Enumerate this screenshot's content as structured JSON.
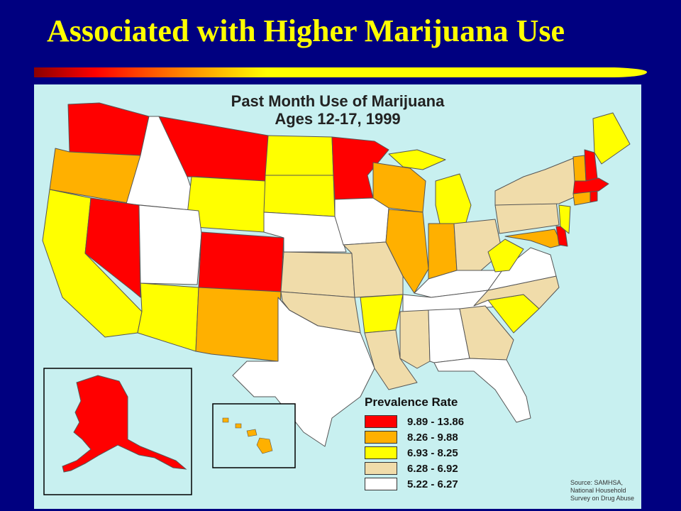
{
  "slide": {
    "title": "Associated with Higher Marijuana Use"
  },
  "map": {
    "title_line1": "Past Month Use of Marijuana",
    "title_line2": "Ages 12-17, 1999",
    "legend": {
      "title": "Prevalence Rate",
      "items": [
        {
          "label": "9.89 - 13.86",
          "color": "#ff0000"
        },
        {
          "label": "8.26 - 9.88",
          "color": "#ffb000"
        },
        {
          "label": "6.93 - 8.25",
          "color": "#ffff00"
        },
        {
          "label": "6.28 - 6.92",
          "color": "#f0dcaa"
        },
        {
          "label": "5.22 - 6.27",
          "color": "#ffffff"
        }
      ]
    },
    "source_line1": "Source: SAMHSA,",
    "source_line2": "National Household Survey on Drug Abuse",
    "states": {
      "WA": "9.89 - 13.86",
      "OR": "8.26 - 9.88",
      "CA": "6.93 - 8.25",
      "ID": "5.22 - 6.27",
      "NV": "9.89 - 13.86",
      "UT": "5.22 - 6.27",
      "AZ": "6.93 - 8.25",
      "MT": "9.89 - 13.86",
      "WY": "6.93 - 8.25",
      "CO": "9.89 - 13.86",
      "NM": "8.26 - 9.88",
      "ND": "6.93 - 8.25",
      "SD": "6.93 - 8.25",
      "NE": "5.22 - 6.27",
      "KS": "6.28 - 6.92",
      "OK": "6.28 - 6.92",
      "TX": "5.22 - 6.27",
      "MN": "9.89 - 13.86",
      "IA": "5.22 - 6.27",
      "MO": "6.28 - 6.92",
      "AR": "6.93 - 8.25",
      "LA": "6.28 - 6.92",
      "WI": "8.26 - 9.88",
      "IL": "8.26 - 9.88",
      "MI": "6.93 - 8.25",
      "IN": "8.26 - 9.88",
      "OH": "6.28 - 6.92",
      "KY": "5.22 - 6.27",
      "TN": "5.22 - 6.27",
      "MS": "6.28 - 6.92",
      "AL": "5.22 - 6.27",
      "GA": "6.28 - 6.92",
      "FL": "5.22 - 6.27",
      "SC": "6.93 - 8.25",
      "NC": "6.28 - 6.92",
      "VA": "5.22 - 6.27",
      "WV": "6.93 - 8.25",
      "MD": "8.26 - 9.88",
      "DE": "9.89 - 13.86",
      "PA": "6.28 - 6.92",
      "NJ": "6.93 - 8.25",
      "NY": "6.28 - 6.92",
      "CT": "8.26 - 9.88",
      "RI": "9.89 - 13.86",
      "MA": "9.89 - 13.86",
      "VT": "8.26 - 9.88",
      "NH": "9.89 - 13.86",
      "ME": "6.93 - 8.25",
      "AK": "9.89 - 13.86",
      "HI": "8.26 - 9.88"
    }
  }
}
